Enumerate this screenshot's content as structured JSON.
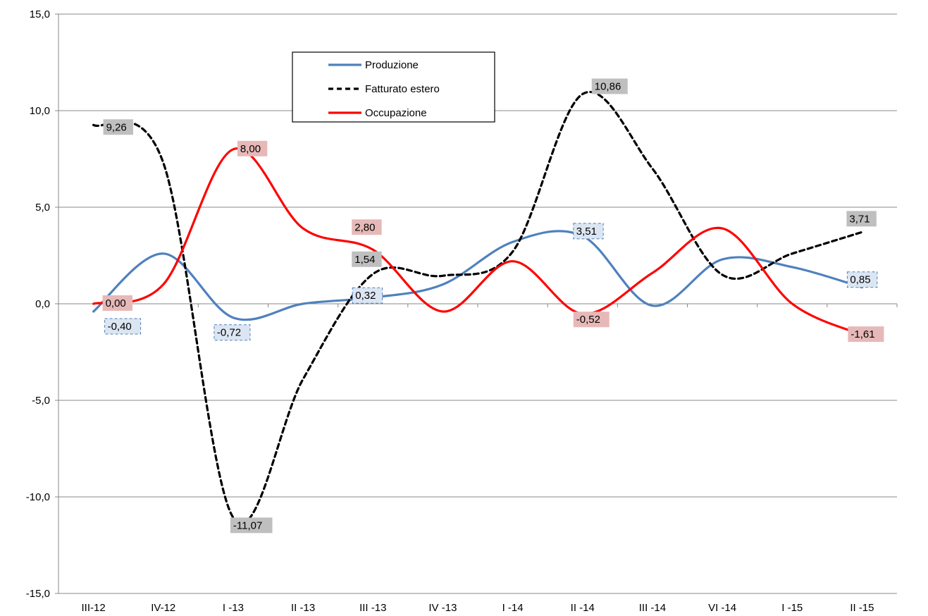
{
  "chart_data": {
    "type": "line",
    "categories": [
      "III-12",
      "IV-12",
      "I -13",
      "II -13",
      "III -13",
      "IV -13",
      "I -14",
      "II -14",
      "III -14",
      "VI -14",
      "I -15",
      "II -15"
    ],
    "ylim": [
      -15,
      15
    ],
    "yticks": [
      -15,
      -10,
      -5,
      0,
      5,
      10,
      15
    ],
    "ytick_labels": [
      "-15,0",
      "-10,0",
      "-5,0",
      "0,0",
      "5,0",
      "10,0",
      "15,0"
    ],
    "grid": "horizontal",
    "legend_position": "top-center",
    "series": [
      {
        "name": "Produzione",
        "color": "#4F81BD",
        "style": "solid",
        "values": [
          -0.4,
          2.6,
          -0.72,
          0.0,
          0.32,
          1.0,
          3.2,
          3.51,
          -0.1,
          2.3,
          1.9,
          0.85
        ],
        "labels": [
          {
            "index": 0,
            "text": "-0,40"
          },
          {
            "index": 2,
            "text": "-0,72"
          },
          {
            "index": 4,
            "text": "0,32"
          },
          {
            "index": 7,
            "text": "3,51"
          },
          {
            "index": 11,
            "text": "0,85"
          }
        ]
      },
      {
        "name": "Fatturato estero",
        "color": "#000000",
        "style": "dashed",
        "values": [
          9.26,
          7.3,
          -11.07,
          -3.9,
          1.54,
          1.45,
          2.7,
          10.86,
          7.0,
          1.5,
          2.6,
          3.71
        ],
        "labels": [
          {
            "index": 0,
            "text": "9,26"
          },
          {
            "index": 2,
            "text": "-11,07"
          },
          {
            "index": 4,
            "text": "1,54"
          },
          {
            "index": 7,
            "text": "10,86"
          },
          {
            "index": 11,
            "text": "3,71"
          }
        ]
      },
      {
        "name": "Occupazione",
        "color": "#FF0000",
        "style": "solid",
        "values": [
          0.0,
          1.0,
          8.0,
          3.9,
          2.8,
          -0.4,
          2.2,
          -0.52,
          1.6,
          3.9,
          0.0,
          -1.61
        ],
        "labels": [
          {
            "index": 0,
            "text": "0,00"
          },
          {
            "index": 2,
            "text": "8,00"
          },
          {
            "index": 4,
            "text": "2,80"
          },
          {
            "index": 7,
            "text": "-0,52"
          },
          {
            "index": 11,
            "text": "-1,61"
          }
        ]
      }
    ]
  }
}
